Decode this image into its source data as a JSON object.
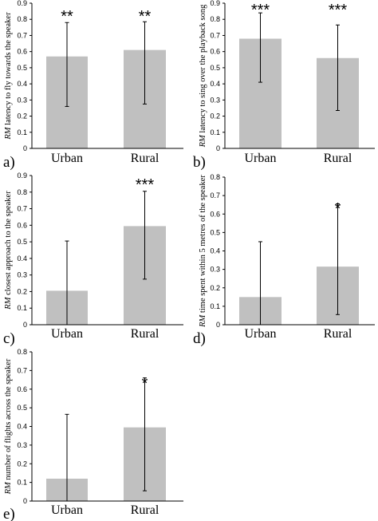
{
  "chart_data": [
    {
      "panel_label": "a)",
      "type": "bar",
      "ylabel_prefix": "RM",
      "ylabel": "latency to fly towards the speaker",
      "ylim": [
        0,
        0.9
      ],
      "yticks": [
        "0",
        "0.1",
        "0.2",
        "0.3",
        "0.4",
        "0.5",
        "0.6",
        "0.7",
        "0.8",
        "0.9"
      ],
      "categories": [
        "Urban",
        "Rural"
      ],
      "values": [
        0.57,
        0.61
      ],
      "error_low": [
        0.26,
        0.275
      ],
      "error_high": [
        0.78,
        0.785
      ],
      "significance": [
        "**",
        "**"
      ]
    },
    {
      "panel_label": "b)",
      "type": "bar",
      "ylabel_prefix": "RM",
      "ylabel": "latency to sing over the playback song",
      "ylim": [
        0,
        0.9
      ],
      "yticks": [
        "0",
        "0.1",
        "0.2",
        "0.3",
        "0.4",
        "0.5",
        "0.6",
        "0.7",
        "0.8",
        "0.9"
      ],
      "categories": [
        "Urban",
        "Rural"
      ],
      "values": [
        0.68,
        0.56
      ],
      "error_low": [
        0.41,
        0.235
      ],
      "error_high": [
        0.84,
        0.765
      ],
      "significance": [
        "***",
        "***"
      ]
    },
    {
      "panel_label": "c)",
      "type": "bar",
      "ylabel_prefix": "RM",
      "ylabel": "closest approach to the speaker",
      "ylim": [
        0,
        0.9
      ],
      "yticks": [
        "0",
        "0.1",
        "0.2",
        "0.3",
        "0.4",
        "0.5",
        "0.6",
        "0.7",
        "0.8",
        "0.9"
      ],
      "categories": [
        "Urban",
        "Rural"
      ],
      "values": [
        0.205,
        0.595
      ],
      "error_low": [
        0,
        0.275
      ],
      "error_high": [
        0.505,
        0.805
      ],
      "significance": [
        "",
        "***"
      ]
    },
    {
      "panel_label": "d)",
      "type": "bar",
      "ylabel_prefix": "RM",
      "ylabel": "time spent within 5 metres of the speaker",
      "ylim": [
        0,
        0.8
      ],
      "yticks": [
        "0",
        "0.1",
        "0.2",
        "0.3",
        "0.4",
        "0.5",
        "0.6",
        "0.7",
        "0.8"
      ],
      "categories": [
        "Urban",
        "Rural"
      ],
      "values": [
        0.15,
        0.315
      ],
      "error_low": [
        0,
        0.055
      ],
      "error_high": [
        0.45,
        0.655
      ],
      "significance": [
        "",
        "*"
      ]
    },
    {
      "panel_label": "e)",
      "type": "bar",
      "ylabel_prefix": "RM",
      "ylabel": "number of flights across the speaker",
      "ylim": [
        0,
        0.8
      ],
      "yticks": [
        "0",
        "0.1",
        "0.2",
        "0.3",
        "0.4",
        "0.5",
        "0.6",
        "0.7",
        "0.8"
      ],
      "categories": [
        "Urban",
        "Rural"
      ],
      "values": [
        0.12,
        0.395
      ],
      "error_low": [
        0,
        0.055
      ],
      "error_high": [
        0.465,
        0.66
      ],
      "significance": [
        "",
        "*"
      ]
    }
  ],
  "colors": {
    "bar": "#c0c0c0",
    "axis": "#000000",
    "error_bar": "#000000"
  }
}
